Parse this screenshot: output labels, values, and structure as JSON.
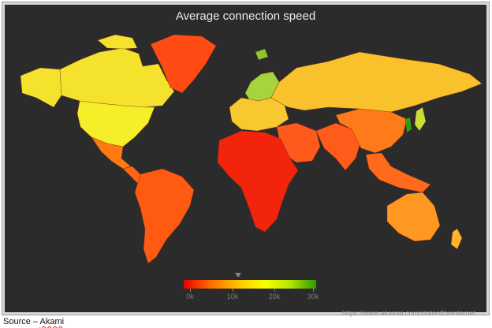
{
  "title": "Average connection speed",
  "legend": {
    "ticks": [
      "0k",
      "10k",
      "20k",
      "30k"
    ],
    "marker_value_k": 10,
    "colors": [
      "#e60000",
      "#ff6a00",
      "#ffd400",
      "#f5ff00",
      "#b6e600",
      "#2d9b00"
    ]
  },
  "url": "https://www.akamai.com/stateoftheinternet",
  "source": {
    "prefix": "Source – ",
    "name": "Akami"
  },
  "regions": [
    {
      "name": "canada",
      "color": "#f4e22c"
    },
    {
      "name": "alaska",
      "color": "#f4e22c"
    },
    {
      "name": "usa",
      "color": "#f5ee28"
    },
    {
      "name": "mexico",
      "color": "#ff7a10"
    },
    {
      "name": "central-america",
      "color": "#ff6418"
    },
    {
      "name": "south-america",
      "color": "#ff5a12"
    },
    {
      "name": "greenland",
      "color": "#ff4b14"
    },
    {
      "name": "scandinavia",
      "color": "#a6d43c"
    },
    {
      "name": "europe",
      "color": "#f7c830"
    },
    {
      "name": "russia",
      "color": "#f9c22c"
    },
    {
      "name": "africa",
      "color": "#f2240c"
    },
    {
      "name": "middle-east",
      "color": "#ff5a1c"
    },
    {
      "name": "south-asia",
      "color": "#ff5c1c"
    },
    {
      "name": "china",
      "color": "#ff7a18"
    },
    {
      "name": "korea",
      "color": "#2f9f10"
    },
    {
      "name": "japan",
      "color": "#c8df38"
    },
    {
      "name": "se-asia",
      "color": "#ff6a1c"
    },
    {
      "name": "australia",
      "color": "#ff9820"
    },
    {
      "name": "new-zealand",
      "color": "#ffb42a"
    },
    {
      "name": "svalbard",
      "color": "#8bc82c"
    }
  ]
}
